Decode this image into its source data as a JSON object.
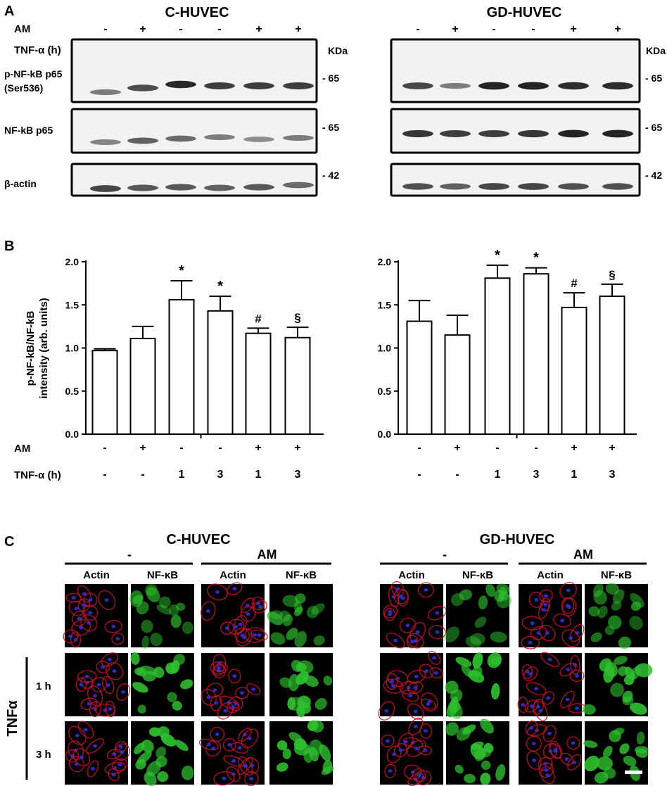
{
  "panelA": {
    "letter": "A",
    "groups": [
      {
        "title": "C-HUVEC",
        "kda_header": "KDa",
        "blots": [
          {
            "label_lines": [
              "p-NF-kB p65",
              "(Ser536)"
            ],
            "marker": "- 65"
          },
          {
            "label_lines": [
              "NF-kB p65"
            ],
            "marker": "- 65"
          },
          {
            "label_lines": [
              "β-actin"
            ],
            "marker": "- 42"
          }
        ]
      },
      {
        "title": "GD-HUVEC",
        "kda_header": "KDa",
        "blots": [
          {
            "label_lines": [],
            "marker": "- 65"
          },
          {
            "label_lines": [],
            "marker": "- 65"
          },
          {
            "label_lines": [],
            "marker": "- 42"
          }
        ]
      }
    ],
    "row_labels": {
      "am": "AM",
      "tnf": "TNF-α (h)"
    },
    "am_values": [
      "-",
      "+",
      "-",
      "-",
      "+",
      "+"
    ],
    "tnf_values": [
      "-",
      "-",
      "1",
      "3",
      "1",
      "3"
    ],
    "band_intensity": [
      [
        [
          0.45,
          0.72,
          0.92,
          0.8,
          0.8,
          0.8
        ],
        [
          0.4,
          0.6,
          0.55,
          0.45,
          0.35,
          0.45
        ],
        [
          0.75,
          0.65,
          0.65,
          0.6,
          0.65,
          0.55
        ]
      ],
      [
        [
          0.75,
          0.45,
          0.95,
          0.95,
          0.9,
          0.9
        ],
        [
          0.85,
          0.8,
          0.8,
          0.85,
          0.95,
          0.95
        ],
        [
          0.7,
          0.6,
          0.75,
          0.75,
          0.7,
          0.7
        ]
      ]
    ]
  },
  "panelB": {
    "letter": "B",
    "row_labels": {
      "am": "AM",
      "tnf": "TNF-α (h)"
    },
    "am_values": [
      "-",
      "+",
      "-",
      "-",
      "+",
      "+"
    ],
    "tnf_values": [
      "-",
      "-",
      "1",
      "3",
      "1",
      "3"
    ],
    "chart_data": [
      {
        "type": "bar",
        "ylabel_lines": [
          "p-NF-kB/NF-kB",
          "intensity (arb. units)"
        ],
        "ylim": [
          0.0,
          2.0
        ],
        "yticks": [
          "0.0",
          "0.5",
          "1.0",
          "1.5",
          "2.0"
        ],
        "values": [
          0.97,
          1.11,
          1.56,
          1.43,
          1.17,
          1.12
        ],
        "errors": [
          0.02,
          0.14,
          0.22,
          0.17,
          0.06,
          0.12
        ],
        "annotations": [
          "",
          "",
          "*",
          "*",
          "#",
          "§"
        ]
      },
      {
        "type": "bar",
        "ylabel_lines": [],
        "ylim": [
          0.0,
          2.0
        ],
        "yticks": [
          "0.0",
          "0.5",
          "1.0",
          "1.5",
          "2.0"
        ],
        "values": [
          1.31,
          1.15,
          1.81,
          1.86,
          1.47,
          1.6
        ],
        "errors": [
          0.24,
          0.23,
          0.15,
          0.07,
          0.17,
          0.14
        ],
        "annotations": [
          "",
          "",
          "*",
          "*",
          "#",
          "§"
        ]
      }
    ]
  },
  "panelC": {
    "letter": "C",
    "side_label": "TNFα",
    "groups": [
      {
        "title": "C-HUVEC",
        "conditions": [
          "-",
          "AM"
        ]
      },
      {
        "title": "GD-HUVEC",
        "conditions": [
          "-",
          "AM"
        ]
      }
    ],
    "channel_labels": [
      "Actin",
      "NF-κB"
    ],
    "row_labels": [
      "",
      "1 h",
      "3 h"
    ],
    "colors": {
      "actin": "#c8102e",
      "nucleus": "#3a2bd6",
      "nfkb": "#2fc02f",
      "background": "#000000"
    }
  }
}
